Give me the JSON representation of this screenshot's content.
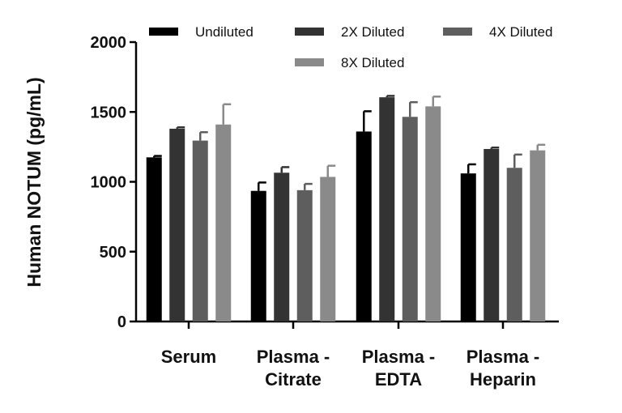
{
  "chart_data": {
    "type": "bar",
    "ylabel": "Human NOTUM (pg/mL)",
    "ylim": [
      0,
      2000
    ],
    "yticks": [
      "0",
      "500",
      "1000",
      "1500",
      "2000"
    ],
    "categories": [
      {
        "line1": "Serum",
        "line2": ""
      },
      {
        "line1": "Plasma -",
        "line2": "Citrate"
      },
      {
        "line1": "Plasma -",
        "line2": "EDTA"
      },
      {
        "line1": "Plasma -",
        "line2": "Heparin"
      }
    ],
    "series": [
      {
        "name": "Undiluted",
        "color": "#000000",
        "values": [
          1175,
          935,
          1360,
          1060
        ],
        "errors": [
          10,
          60,
          145,
          65
        ]
      },
      {
        "name": "2X Diluted",
        "color": "#333333",
        "values": [
          1380,
          1065,
          1605,
          1235
        ],
        "errors": [
          10,
          40,
          10,
          10
        ]
      },
      {
        "name": "4X Diluted",
        "color": "#5e5e5e",
        "values": [
          1295,
          940,
          1465,
          1100
        ],
        "errors": [
          60,
          45,
          105,
          95
        ]
      },
      {
        "name": "8X Diluted",
        "color": "#8a8a8a",
        "values": [
          1410,
          1035,
          1540,
          1225
        ],
        "errors": [
          145,
          80,
          70,
          40
        ]
      }
    ],
    "legend": "top"
  }
}
